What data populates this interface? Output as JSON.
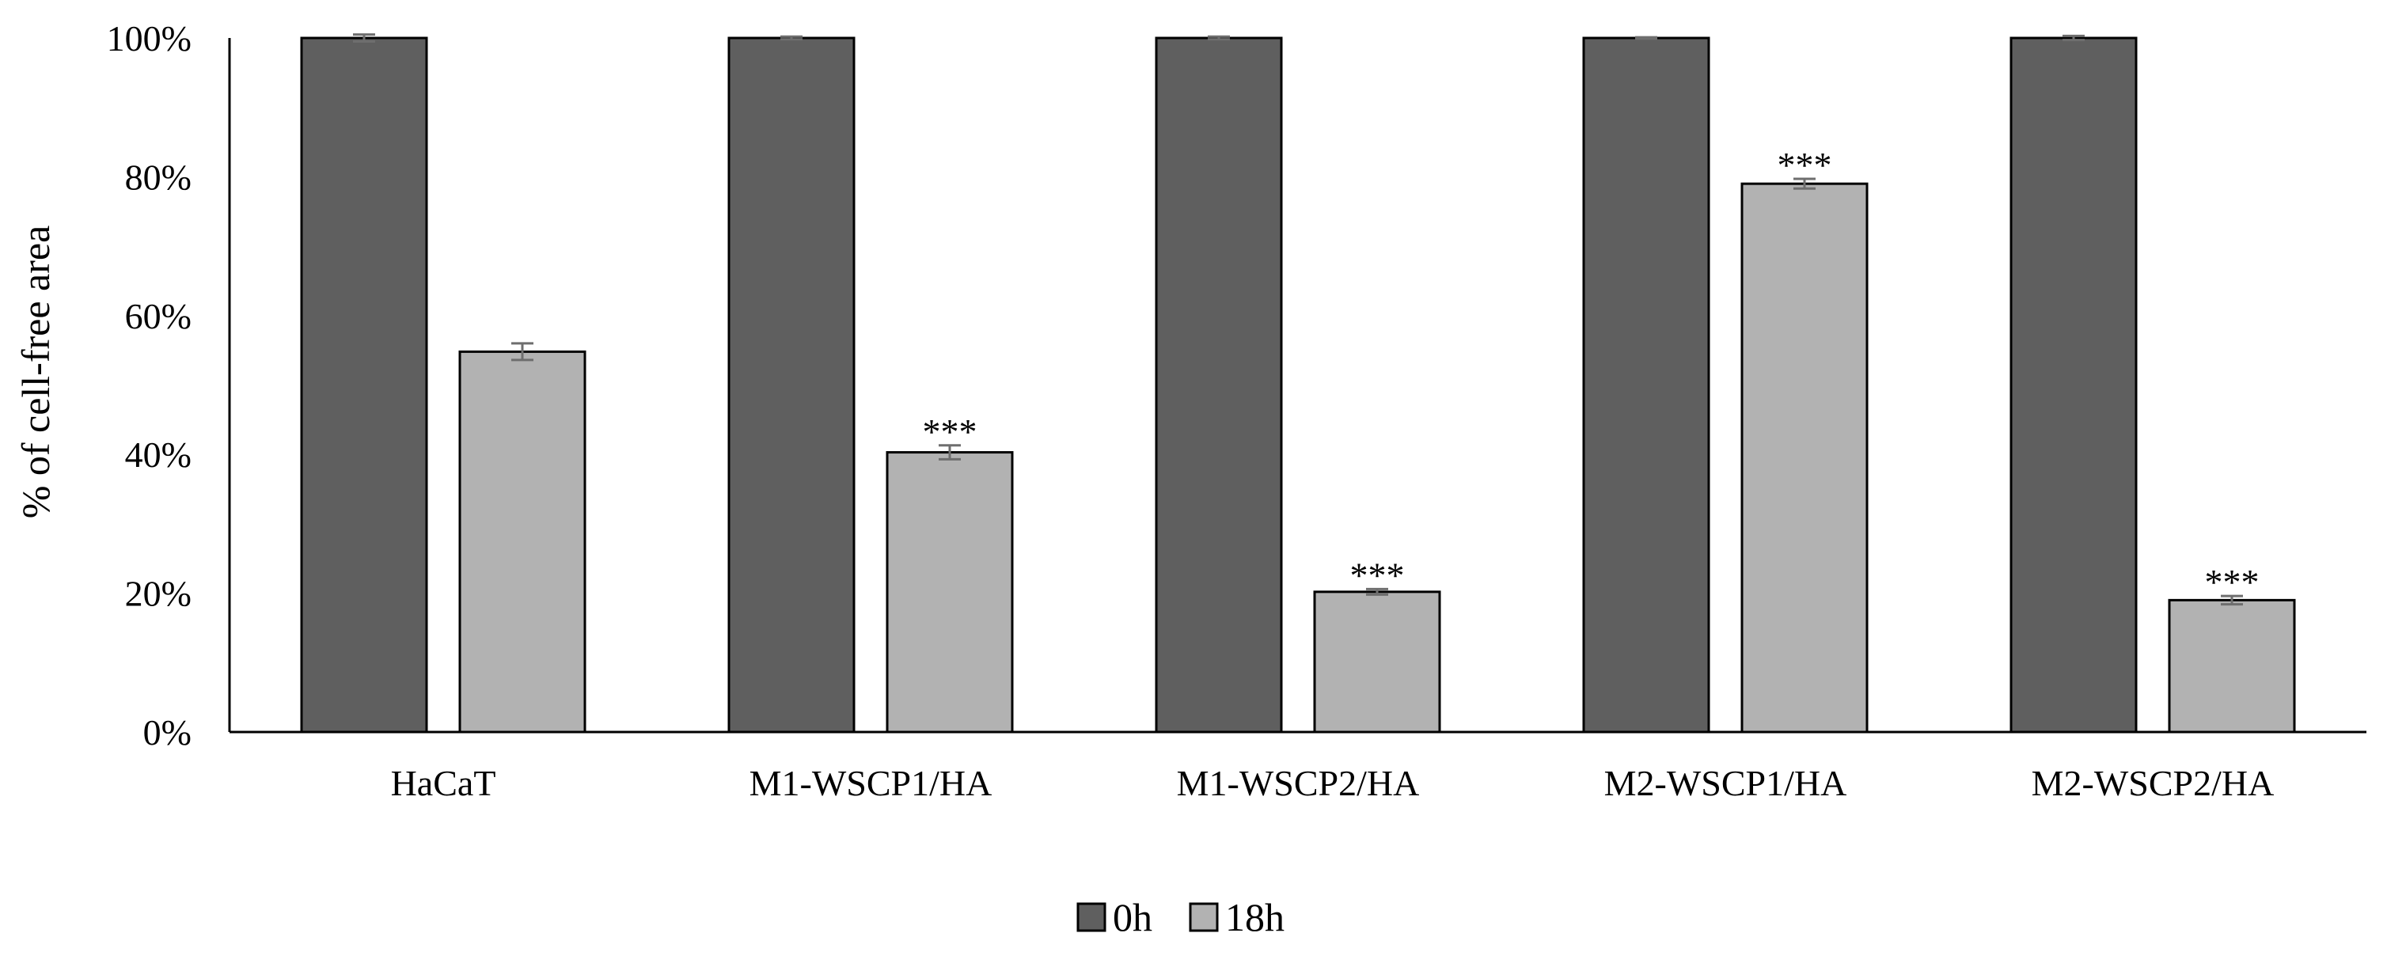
{
  "chart_data": {
    "type": "bar",
    "categories": [
      "HaCaT",
      "M1-WSCP1/HA",
      "M1-WSCP2/HA",
      "M2-WSCP1/HA",
      "M2-WSCP2/HA"
    ],
    "series": [
      {
        "name": "0h",
        "color": "#5f5f5f",
        "values": [
          100,
          100,
          100,
          100,
          100
        ],
        "errors": [
          0.5,
          0.2,
          0.2,
          0.1,
          0.3
        ],
        "significance": [
          "",
          "",
          "",
          "",
          ""
        ]
      },
      {
        "name": "18h",
        "color": "#b2b2b2",
        "values": [
          54.8,
          40.3,
          20.2,
          79.0,
          19.0
        ],
        "errors": [
          1.2,
          1.0,
          0.4,
          0.7,
          0.6
        ],
        "significance": [
          "",
          "***",
          "***",
          "***",
          "***"
        ]
      }
    ],
    "ylabel": "% of cell-free area",
    "xlabel": "",
    "ylim": [
      0,
      100
    ],
    "yticks": [
      0,
      20,
      40,
      60,
      80,
      100
    ],
    "ytick_labels": [
      "0%",
      "20%",
      "40%",
      "60%",
      "80%",
      "100%"
    ],
    "grid": false,
    "legend_position": "bottom-center"
  }
}
